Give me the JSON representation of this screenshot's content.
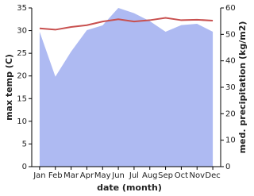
{
  "chart_data": {
    "type": "line",
    "x_label": "date (month)",
    "y_label": "max temp (C)",
    "y2_label": "med. precipitation (kg/m2)",
    "categories": [
      "Jan",
      "Feb",
      "Mar",
      "Apr",
      "May",
      "Jun",
      "Jul",
      "Aug",
      "Sep",
      "Oct",
      "Nov",
      "Dec"
    ],
    "series": [
      {
        "type": "area",
        "axis": "y2",
        "color": "#aebaf2",
        "values": [
          51,
          34,
          43.5,
          51.6,
          53.4,
          60,
          58,
          55,
          51,
          53.5,
          54,
          51
        ]
      },
      {
        "type": "line",
        "color": "#c8504f",
        "values": [
          30.5,
          30.2,
          30.8,
          31.2,
          32,
          32.5,
          32,
          32.3,
          32.8,
          32.3,
          32.4,
          32.2
        ]
      }
    ],
    "ylim": [
      0,
      35
    ],
    "yticks": [
      0,
      5,
      10,
      15,
      20,
      25,
      30,
      35
    ],
    "y2lim": [
      0,
      60
    ],
    "y2ticks": [
      0,
      10,
      20,
      30,
      40,
      50,
      60
    ]
  }
}
